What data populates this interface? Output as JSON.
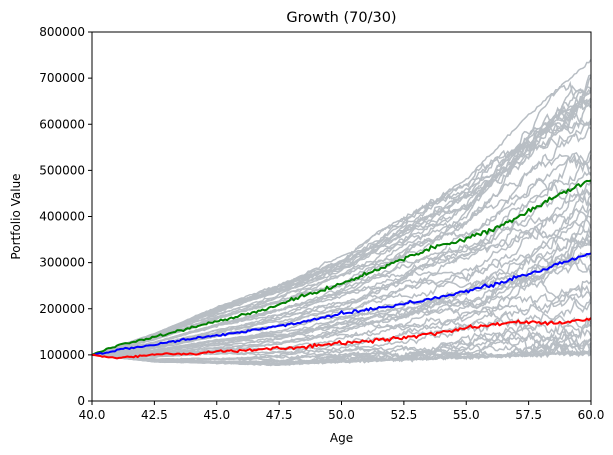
{
  "chart_data": {
    "type": "line",
    "title": "Growth (70/30)",
    "xlabel": "Age",
    "ylabel": "Portfolio Value",
    "xlim": [
      40,
      60
    ],
    "ylim": [
      0,
      800000
    ],
    "x_ticks": [
      40.0,
      42.5,
      45.0,
      47.5,
      50.0,
      52.5,
      55.0,
      57.5,
      60.0
    ],
    "x_tick_labels": [
      "40.0",
      "42.5",
      "45.0",
      "47.5",
      "50.0",
      "52.5",
      "55.0",
      "57.5",
      "60.0"
    ],
    "y_ticks": [
      0,
      100000,
      200000,
      300000,
      400000,
      500000,
      600000,
      700000,
      800000
    ],
    "y_tick_labels": [
      "0",
      "100000",
      "200000",
      "300000",
      "400000",
      "500000",
      "600000",
      "700000",
      "800000"
    ],
    "grid": false,
    "legend": "none",
    "colors": {
      "simulations": "#b8bec4",
      "upper": "#008000",
      "median": "#0000ff",
      "lower": "#ff0000"
    },
    "simulation_count": 60,
    "simulation_band": {
      "x": [
        40,
        42.5,
        45,
        47.5,
        50,
        52.5,
        55,
        57.5,
        60
      ],
      "low": [
        100000,
        85000,
        82000,
        78000,
        85000,
        90000,
        95000,
        100000,
        105000
      ],
      "high": [
        100000,
        150000,
        210000,
        260000,
        320000,
        400000,
        480000,
        620000,
        740000
      ]
    },
    "series": [
      {
        "color": "#008000",
        "x": [
          40,
          41,
          42,
          43,
          44,
          45,
          46,
          47,
          48,
          49,
          50,
          51,
          52,
          53,
          54,
          55,
          56,
          57,
          58,
          59,
          60
        ],
        "values": [
          100000,
          120000,
          132000,
          145000,
          160000,
          172000,
          185000,
          200000,
          220000,
          235000,
          255000,
          275000,
          298000,
          320000,
          338000,
          352000,
          372000,
          395000,
          425000,
          455000,
          478000
        ]
      },
      {
        "color": "#0000ff",
        "x": [
          40,
          41,
          42,
          43,
          44,
          45,
          46,
          47,
          48,
          49,
          50,
          51,
          52,
          53,
          54,
          55,
          56,
          57,
          58,
          59,
          60
        ],
        "values": [
          100000,
          110000,
          118000,
          127000,
          135000,
          142000,
          150000,
          158000,
          167000,
          178000,
          190000,
          198000,
          206000,
          216000,
          226000,
          238000,
          250000,
          268000,
          282000,
          303000,
          320000
        ]
      },
      {
        "color": "#ff0000",
        "x": [
          40,
          41,
          42,
          43,
          44,
          45,
          46,
          47,
          48,
          49,
          50,
          51,
          52,
          53,
          54,
          55,
          56,
          57,
          58,
          59,
          60
        ],
        "values": [
          100000,
          93000,
          98000,
          103000,
          102000,
          107000,
          109000,
          113000,
          115000,
          120000,
          125000,
          130000,
          135000,
          140000,
          150000,
          158000,
          165000,
          172000,
          168000,
          172000,
          180000
        ]
      }
    ]
  }
}
